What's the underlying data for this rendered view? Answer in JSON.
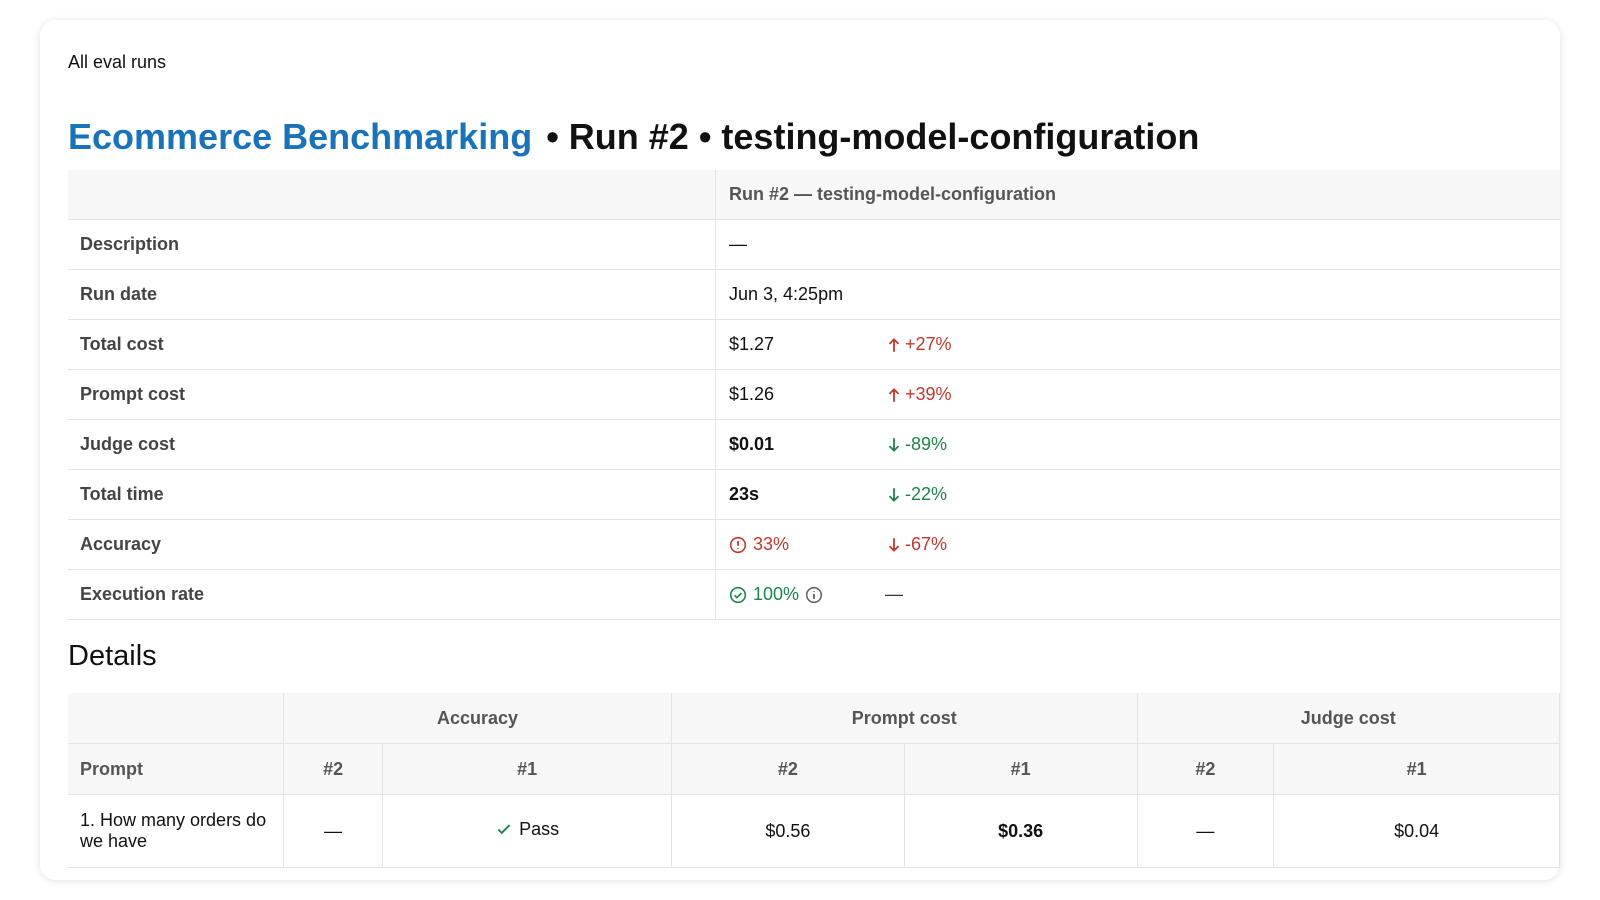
{
  "breadcrumb": "All eval runs",
  "title": {
    "project": "Ecommerce Benchmarking",
    "rest": "• Run #2 • testing-model-configuration"
  },
  "summary": {
    "header": "Run #2 — testing-model-configuration",
    "rows": [
      {
        "label": "Description",
        "value": "—"
      },
      {
        "label": "Run date",
        "value": "Jun 3, 4:25pm"
      },
      {
        "label": "Total cost",
        "value": "$1.27",
        "change": "+27%",
        "direction": "up",
        "color": "#c0392b"
      },
      {
        "label": "Prompt cost",
        "value": "$1.26",
        "change": "+39%",
        "direction": "up",
        "color": "#c0392b"
      },
      {
        "label": "Judge cost",
        "value": "$0.01",
        "bold": true,
        "change": "-89%",
        "direction": "down",
        "color": "#1e8449"
      },
      {
        "label": "Total time",
        "value": "23s",
        "bold": true,
        "change": "-22%",
        "direction": "down",
        "color": "#1e8449"
      },
      {
        "label": "Accuracy",
        "value": "33%",
        "icon": "warning",
        "value_color": "#c0392b",
        "change": "-67%",
        "direction": "down",
        "color": "#c0392b"
      },
      {
        "label": "Execution rate",
        "value": "100%",
        "icon": "check",
        "info": true,
        "value_color": "#1e8449",
        "change": "—",
        "color": "#333333"
      }
    ]
  },
  "details": {
    "heading": "Details",
    "groups": [
      "Accuracy",
      "Prompt cost",
      "Judge cost"
    ],
    "columns": [
      "Prompt",
      "#2",
      "#1",
      "#2",
      "#1",
      "#2",
      "#1"
    ],
    "rows": [
      {
        "cells": [
          "1. How many orders do we have",
          "—",
          "Pass",
          "$0.56",
          "$0.36",
          "—",
          "$0.04"
        ],
        "bold": [
          4
        ],
        "pass": [
          2
        ]
      }
    ]
  }
}
